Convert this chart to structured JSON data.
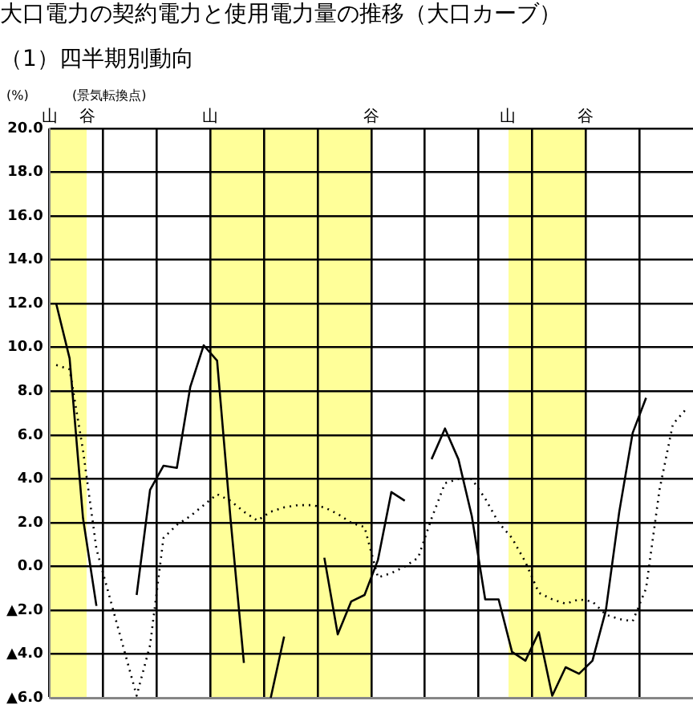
{
  "chart_data": {
    "type": "line",
    "title": "大口電力の契約電力と使用電力量の推移（大口カーブ）",
    "subtitle": "（1）四半期別動向",
    "ylabel": "(%)",
    "annotations": [
      "(景気転換点)",
      "山",
      "谷",
      "山",
      "谷",
      "山",
      "谷"
    ],
    "categories": [
      null,
      null,
      null,
      null,
      null,
      null,
      null,
      null,
      null,
      null,
      null,
      null,
      null,
      null,
      null,
      null,
      null,
      null,
      null,
      null,
      null,
      null,
      null,
      null,
      null,
      null,
      null,
      null,
      null,
      null,
      null,
      null,
      null,
      null,
      null,
      null,
      null,
      null,
      null,
      null,
      null,
      null,
      null,
      null,
      null,
      null,
      null,
      null
    ],
    "ylim": [
      -6,
      20
    ],
    "yticks": [
      {
        "value": -6,
        "label": "▲6.0"
      },
      {
        "value": -4,
        "label": "▲4.0"
      },
      {
        "value": -2,
        "label": "▲2.0"
      },
      {
        "value": 0,
        "label": "0.0"
      },
      {
        "value": 2,
        "label": "2.0"
      },
      {
        "value": 4,
        "label": "4.0"
      },
      {
        "value": 6,
        "label": "6.0"
      },
      {
        "value": 8,
        "label": "8.0"
      },
      {
        "value": 10,
        "label": "10.0"
      },
      {
        "value": 12,
        "label": "12.0"
      },
      {
        "value": 14,
        "label": "14.0"
      },
      {
        "value": 16,
        "label": "16.0"
      },
      {
        "value": 18,
        "label": "18.0"
      },
      {
        "value": 20,
        "label": "20.0"
      }
    ],
    "tick_labels": "y",
    "grid": true,
    "legend": false,
    "marker": "none",
    "series": [
      {
        "color": "#000000",
        "line_style": "solid",
        "values": [
          12.0,
          9.5,
          2.2,
          -1.8,
          null,
          null,
          -1.3,
          3.5,
          4.6,
          4.5,
          8.2,
          10.1,
          9.4,
          2.2,
          -4.4,
          null,
          -6.0,
          -3.2,
          null,
          null,
          0.4,
          -3.1,
          -1.6,
          -1.3,
          0.3,
          3.4,
          3.0,
          null,
          4.9,
          6.3,
          4.9,
          2.3,
          -1.5,
          -1.5,
          -3.9,
          -4.3,
          -3.0,
          -5.9,
          -4.6,
          -4.9,
          -4.3,
          -2.0,
          2.5,
          6.1,
          7.7,
          null,
          null,
          null
        ]
      },
      {
        "color": "#000000",
        "line_style": "dotted",
        "values": [
          9.2,
          9.0,
          5.3,
          0.8,
          null,
          null,
          -5.9,
          -3.6,
          1.3,
          1.9,
          2.3,
          2.8,
          3.3,
          3.0,
          2.5,
          2.1,
          2.5,
          2.7,
          2.8,
          2.8,
          2.7,
          2.4,
          2.0,
          1.8,
          -0.5,
          -0.3,
          0.0,
          0.4,
          2.2,
          3.8,
          4.0,
          4.0,
          3.1,
          2.0,
          1.3,
          0.2,
          -1.2,
          -1.5,
          -1.7,
          -1.5,
          -1.6,
          -2.2,
          -2.4,
          -2.5,
          -1.0,
          3.5,
          6.5,
          7.2
        ]
      }
    ]
  }
}
